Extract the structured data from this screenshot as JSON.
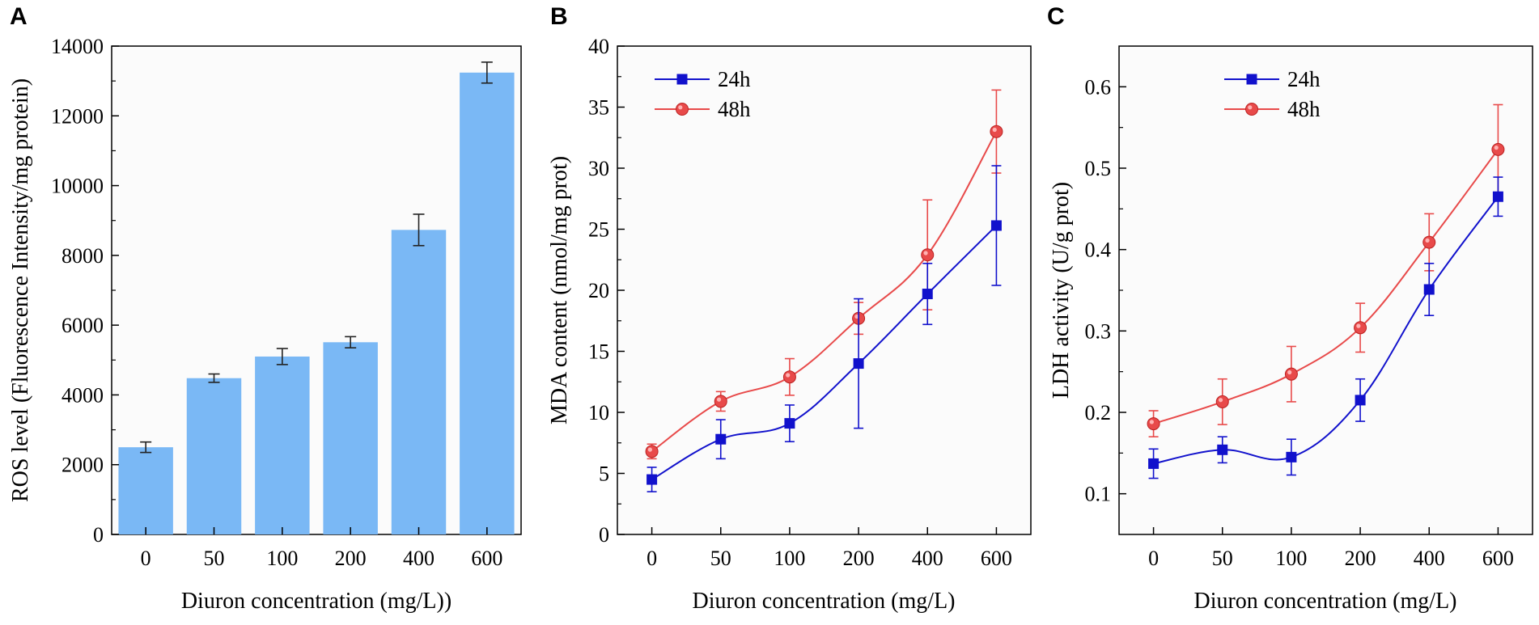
{
  "chart_data": [
    {
      "panel": "A",
      "type": "bar",
      "title": "",
      "xlabel": "Diuron concentration (mg/L))",
      "ylabel": "ROS level (Fluorescence Intensity/mg protein)",
      "categories": [
        "0",
        "50",
        "100",
        "200",
        "400",
        "600"
      ],
      "values": [
        2500,
        4480,
        5100,
        5510,
        8730,
        13240
      ],
      "errors": [
        150,
        120,
        230,
        160,
        450,
        300
      ],
      "ylim": [
        0,
        14000
      ],
      "yticks": [
        "0",
        "2000",
        "4000",
        "6000",
        "8000",
        "10000",
        "12000",
        "14000"
      ],
      "bar_color": "#7ab8f5",
      "grid": false
    },
    {
      "panel": "B",
      "type": "line",
      "title": "",
      "xlabel": "Diuron concentration (mg/L)",
      "ylabel": "MDA content (nmol/mg prot)",
      "categories": [
        "0",
        "50",
        "100",
        "200",
        "400",
        "600"
      ],
      "ylim": [
        0,
        40
      ],
      "yticks": [
        "0",
        "5",
        "10",
        "15",
        "20",
        "25",
        "30",
        "35",
        "40"
      ],
      "legend": "top-left",
      "series": [
        {
          "name": "24h",
          "color": "#1111cc",
          "marker": "square",
          "values": [
            4.5,
            7.8,
            9.1,
            14.0,
            19.7,
            25.3
          ],
          "errors": [
            1.0,
            1.6,
            1.5,
            5.3,
            2.5,
            4.9
          ]
        },
        {
          "name": "48h",
          "color": "#e84a4a",
          "marker": "circle",
          "values": [
            6.8,
            10.9,
            12.9,
            17.7,
            22.9,
            33.0
          ],
          "errors": [
            0.6,
            0.8,
            1.5,
            1.3,
            4.5,
            3.4
          ]
        }
      ],
      "grid": false
    },
    {
      "panel": "C",
      "type": "line",
      "title": "",
      "xlabel": "Diuron concentration (mg/L)",
      "ylabel": "LDH activity (U/g prot)",
      "categories": [
        "0",
        "50",
        "100",
        "200",
        "400",
        "600"
      ],
      "ylim": [
        0.05,
        0.65
      ],
      "yticks": [
        "0.1",
        "0.2",
        "0.3",
        "0.4",
        "0.5",
        "0.6"
      ],
      "ytick_values": [
        0.1,
        0.2,
        0.3,
        0.4,
        0.5,
        0.6
      ],
      "legend": "top-center",
      "series": [
        {
          "name": "24h",
          "color": "#1111cc",
          "marker": "square",
          "values": [
            0.137,
            0.154,
            0.145,
            0.215,
            0.351,
            0.465
          ],
          "errors": [
            0.018,
            0.016,
            0.022,
            0.026,
            0.032,
            0.024
          ]
        },
        {
          "name": "48h",
          "color": "#e84a4a",
          "marker": "circle",
          "values": [
            0.186,
            0.213,
            0.247,
            0.304,
            0.409,
            0.523
          ],
          "errors": [
            0.016,
            0.028,
            0.034,
            0.03,
            0.035,
            0.055
          ]
        }
      ],
      "grid": false
    }
  ]
}
